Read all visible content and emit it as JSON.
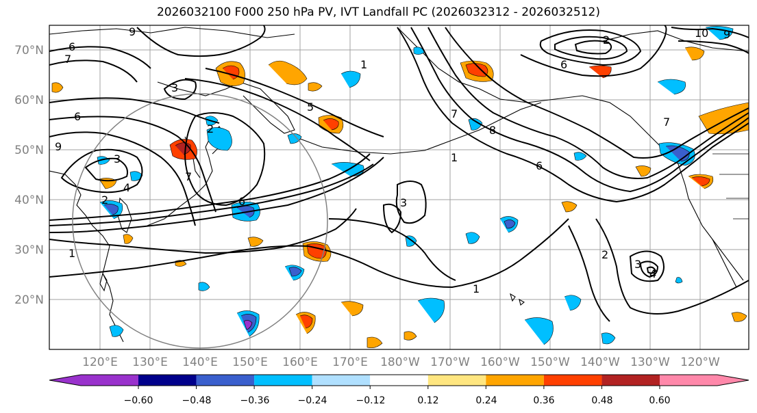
{
  "title": "2026032100 F000 250 hPa PV, IVT Landfall PC (2026032312 - 2026032512)",
  "map": {
    "lat_labels": [
      "70°N",
      "60°N",
      "50°N",
      "40°N",
      "30°N",
      "20°N"
    ],
    "lon_labels": [
      "120°E",
      "130°E",
      "140°E",
      "150°E",
      "160°E",
      "170°E",
      "180°W",
      "170°W",
      "160°W",
      "150°W",
      "140°W",
      "130°W",
      "120°W"
    ],
    "contour_labels": [
      "9",
      "6",
      "7",
      "6",
      "9",
      "3",
      "2",
      "1",
      "5",
      "3",
      "2",
      "6",
      "4",
      "7",
      "6",
      "1",
      "6",
      "7",
      "8",
      "10",
      "9",
      "1",
      "7",
      "3",
      "2",
      "2",
      "3",
      "4",
      "1"
    ],
    "colors": {
      "neg_strong": "#9932cc",
      "neg_4": "#00008b",
      "neg_3": "#3a5fcd",
      "neg_2": "#00bfff",
      "neg_1": "#b0e0ff",
      "neutral": "#ffffff",
      "pos_1": "#ffe680",
      "pos_2": "#ffa500",
      "pos_3": "#ff4000",
      "pos_4": "#b22222",
      "pos_strong": "#ff88aa"
    }
  },
  "colorbar": {
    "tick_labels": [
      "−0.60",
      "−0.48",
      "−0.36",
      "−0.24",
      "−0.12",
      "0.12",
      "0.24",
      "0.36",
      "0.48",
      "0.60"
    ],
    "bin_colors": [
      "#9932cc",
      "#00008b",
      "#3a5fcd",
      "#00bfff",
      "#b0e0ff",
      "#ffffff",
      "#ffe680",
      "#ffa500",
      "#ff4000",
      "#b22222",
      "#ff88aa"
    ]
  }
}
